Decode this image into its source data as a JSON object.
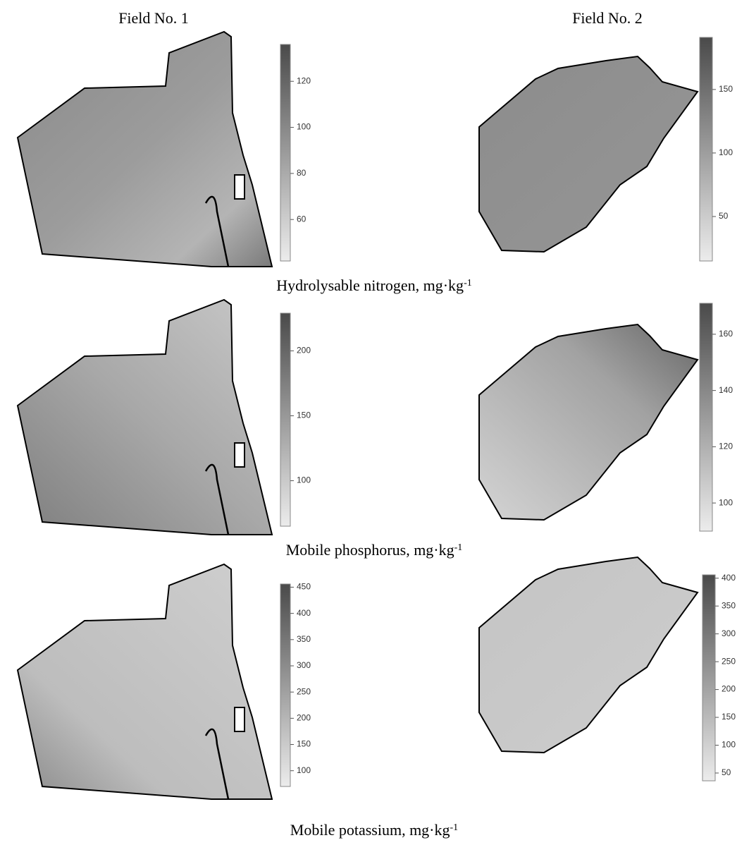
{
  "columns": [
    "Field No. 1",
    "Field No. 2"
  ],
  "rows": [
    {
      "caption": "Hydrolysable nitrogen, mg·kg",
      "exponent": "-1",
      "maps": [
        {
          "colorbar": {
            "lim": [
              42,
              136
            ],
            "ticks": [
              60,
              80,
              100,
              120
            ]
          }
        },
        {
          "colorbar": {
            "lim": [
              15,
              191
            ],
            "ticks": [
              50,
              100,
              150
            ]
          }
        }
      ]
    },
    {
      "caption": "Mobile phosphorus, mg·kg",
      "exponent": "-1",
      "maps": [
        {
          "colorbar": {
            "lim": [
              65,
              229
            ],
            "ticks": [
              100,
              150,
              200
            ]
          }
        },
        {
          "colorbar": {
            "lim": [
              90,
              171
            ],
            "ticks": [
              100,
              120,
              140,
              160
            ]
          }
        }
      ]
    },
    {
      "caption": "Mobile potassium, mg·kg",
      "exponent": "-1",
      "maps": [
        {
          "colorbar": {
            "lim": [
              70,
              456
            ],
            "ticks": [
              100,
              150,
              200,
              250,
              300,
              350,
              400,
              450
            ]
          }
        },
        {
          "colorbar": {
            "lim": [
              36,
              406
            ],
            "ticks": [
              50,
              100,
              150,
              200,
              250,
              300,
              350,
              400
            ]
          }
        }
      ]
    }
  ]
}
